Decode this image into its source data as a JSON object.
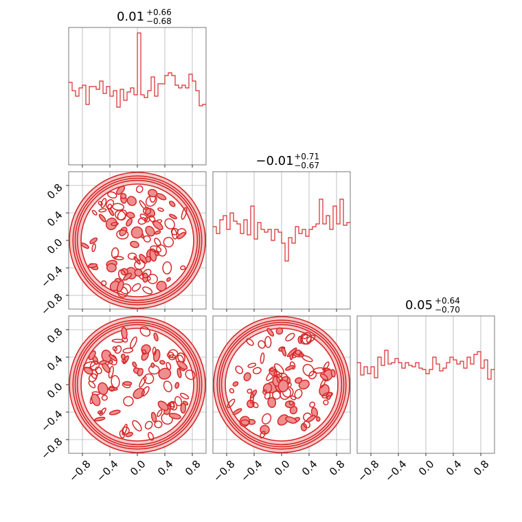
{
  "chart_data": {
    "type": "corner",
    "color": "#d62728",
    "fill_light": "#f7c9c9",
    "fill_mid": "#ee8e8e",
    "range": [
      -1.0,
      1.0
    ],
    "tick_values": [
      -0.8,
      -0.4,
      0.0,
      0.4,
      0.8
    ],
    "tick_labels": [
      "−0.8",
      "−0.4",
      "0.0",
      "0.4",
      "0.8"
    ],
    "grid": true,
    "parameters": [
      {
        "title_value": "0.01",
        "title_plus": "+0.66",
        "title_minus": "−0.68",
        "hist_values": [
          0.6,
          0.54,
          0.5,
          0.56,
          0.58,
          0.44,
          0.57,
          0.57,
          0.55,
          0.61,
          0.52,
          0.57,
          0.5,
          0.54,
          0.42,
          0.55,
          0.47,
          0.53,
          0.56,
          0.51,
          0.96,
          0.51,
          0.49,
          0.54,
          0.64,
          0.5,
          0.59,
          0.59,
          0.65,
          0.67,
          0.65,
          0.58,
          0.56,
          0.58,
          0.56,
          0.66,
          0.61,
          0.54,
          0.43,
          0.44
        ]
      },
      {
        "title_value": "−0.01",
        "title_plus": "+0.71",
        "title_minus": "−0.67",
        "hist_values": [
          0.6,
          0.55,
          0.65,
          0.68,
          0.58,
          0.7,
          0.64,
          0.62,
          0.55,
          0.65,
          0.54,
          0.75,
          0.51,
          0.63,
          0.58,
          0.56,
          0.58,
          0.5,
          0.58,
          0.56,
          0.48,
          0.35,
          0.52,
          0.48,
          0.6,
          0.55,
          0.58,
          0.53,
          0.58,
          0.6,
          0.62,
          0.8,
          0.62,
          0.68,
          0.58,
          0.75,
          0.62,
          0.8,
          0.61,
          0.63
        ]
      },
      {
        "title_value": "0.05",
        "title_plus": "+0.64",
        "title_minus": "−0.70",
        "hist_values": [
          0.66,
          0.57,
          0.63,
          0.58,
          0.63,
          0.55,
          0.7,
          0.64,
          0.75,
          0.65,
          0.66,
          0.69,
          0.66,
          0.62,
          0.66,
          0.64,
          0.63,
          0.66,
          0.62,
          0.61,
          0.58,
          0.61,
          0.7,
          0.65,
          0.6,
          0.62,
          0.66,
          0.7,
          0.68,
          0.65,
          0.67,
          0.62,
          0.7,
          0.65,
          0.72,
          0.74,
          0.62,
          0.68,
          0.54,
          0.61
        ]
      }
    ]
  }
}
